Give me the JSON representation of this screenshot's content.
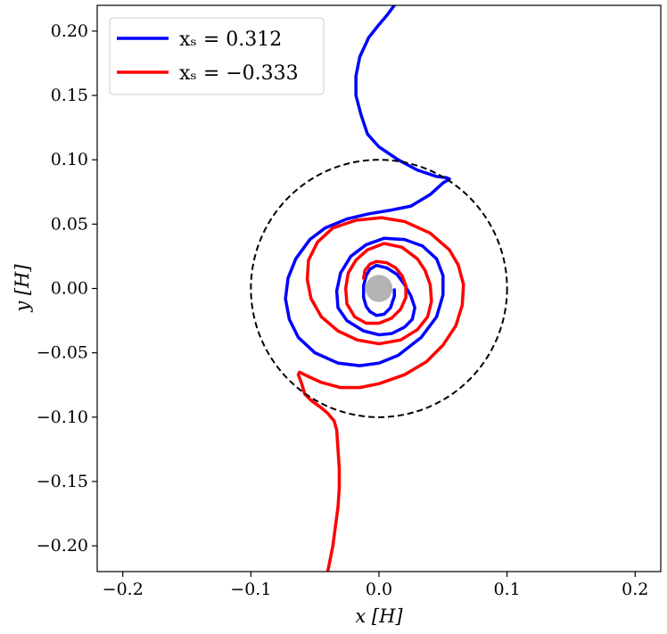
{
  "chart_data": {
    "type": "line",
    "title": "",
    "xlabel": "x [H]",
    "ylabel": "y [H]",
    "xlim": [
      -0.22,
      0.22
    ],
    "ylim": [
      -0.22,
      0.22
    ],
    "x_ticks": [
      -0.2,
      -0.1,
      0.0,
      0.1,
      0.2
    ],
    "x_tick_labels": [
      "−0.2",
      "−0.1",
      "0.0",
      "0.1",
      "0.2"
    ],
    "y_ticks": [
      0.2,
      0.15,
      0.1,
      0.05,
      0.0,
      -0.05,
      -0.1,
      -0.15,
      -0.2
    ],
    "y_tick_labels": [
      "0.20",
      "0.15",
      "0.10",
      "0.05",
      "0.00",
      "−0.05",
      "−0.10",
      "−0.15",
      "−0.20"
    ],
    "grid": false,
    "legend_position": "top-left",
    "reference_circle": {
      "center": [
        0.0,
        0.0
      ],
      "radius": 0.1,
      "style": "dashed",
      "color": "#000000"
    },
    "central_body": {
      "center": [
        0.0,
        0.0
      ],
      "radius": 0.0105,
      "color": "#b3b3b3"
    },
    "series": [
      {
        "name": "x_s = 0.312",
        "legend_label": "xₛ = 0.312",
        "color": "#0000ff",
        "x": [
          0.012,
          0.012,
          0.009,
          0.004,
          -0.002,
          -0.007,
          -0.01,
          -0.012,
          -0.012,
          -0.01,
          -0.007,
          -0.002,
          0.006,
          0.014,
          0.02,
          0.025,
          0.028,
          0.026,
          0.02,
          0.01,
          0.0,
          -0.012,
          -0.025,
          -0.032,
          -0.033,
          -0.03,
          -0.022,
          -0.01,
          0.004,
          0.02,
          0.034,
          0.045,
          0.05,
          0.05,
          0.045,
          0.033,
          0.015,
          0.0,
          -0.015,
          -0.032,
          -0.05,
          -0.063,
          -0.07,
          -0.073,
          -0.071,
          -0.065,
          -0.054,
          -0.042,
          -0.025,
          -0.008,
          0.01,
          0.025,
          0.04,
          0.05,
          0.055,
          0.053,
          0.045,
          0.03,
          0.015,
          0.0,
          -0.009,
          -0.014,
          -0.018,
          -0.018,
          -0.015,
          -0.008,
          0.0,
          0.006,
          0.012
        ],
        "y": [
          -0.001,
          -0.006,
          -0.015,
          -0.02,
          -0.021,
          -0.018,
          -0.014,
          -0.007,
          0.002,
          0.01,
          0.015,
          0.018,
          0.016,
          0.011,
          0.003,
          -0.006,
          -0.015,
          -0.024,
          -0.03,
          -0.035,
          -0.036,
          -0.033,
          -0.025,
          -0.015,
          -0.002,
          0.012,
          0.025,
          0.034,
          0.039,
          0.038,
          0.033,
          0.023,
          0.01,
          -0.005,
          -0.022,
          -0.038,
          -0.052,
          -0.058,
          -0.06,
          -0.058,
          -0.05,
          -0.038,
          -0.024,
          -0.008,
          0.008,
          0.023,
          0.038,
          0.047,
          0.054,
          0.058,
          0.061,
          0.064,
          0.073,
          0.082,
          0.085,
          0.086,
          0.087,
          0.092,
          0.1,
          0.11,
          0.12,
          0.135,
          0.15,
          0.165,
          0.18,
          0.195,
          0.205,
          0.212,
          0.22
        ]
      },
      {
        "name": "x_s = -0.333",
        "legend_label": "xₛ = −0.333",
        "color": "#ff0000",
        "x": [
          -0.012,
          -0.011,
          -0.007,
          -0.002,
          0.006,
          0.013,
          0.018,
          0.021,
          0.021,
          0.017,
          0.01,
          0.0,
          -0.01,
          -0.019,
          -0.025,
          -0.026,
          -0.024,
          -0.018,
          -0.009,
          0.004,
          0.018,
          0.03,
          0.036,
          0.04,
          0.041,
          0.038,
          0.03,
          0.017,
          0.0,
          -0.017,
          -0.032,
          -0.045,
          -0.053,
          -0.056,
          -0.055,
          -0.048,
          -0.036,
          -0.018,
          0.002,
          0.02,
          0.04,
          0.055,
          0.062,
          0.066,
          0.065,
          0.06,
          0.05,
          0.037,
          0.02,
          0.0,
          -0.015,
          -0.03,
          -0.045,
          -0.056,
          -0.062,
          -0.063,
          -0.06,
          -0.058,
          -0.053,
          -0.046,
          -0.04,
          -0.035,
          -0.033,
          -0.032,
          -0.031,
          -0.031,
          -0.032,
          -0.034,
          -0.036,
          -0.04
        ],
        "y": [
          0.008,
          0.014,
          0.019,
          0.021,
          0.02,
          0.016,
          0.01,
          0.002,
          -0.007,
          -0.016,
          -0.023,
          -0.027,
          -0.027,
          -0.022,
          -0.012,
          0.0,
          0.012,
          0.022,
          0.03,
          0.035,
          0.032,
          0.023,
          0.014,
          0.003,
          -0.01,
          -0.022,
          -0.032,
          -0.04,
          -0.043,
          -0.04,
          -0.033,
          -0.022,
          -0.008,
          0.007,
          0.022,
          0.036,
          0.047,
          0.053,
          0.055,
          0.052,
          0.043,
          0.03,
          0.018,
          0.003,
          -0.013,
          -0.029,
          -0.044,
          -0.057,
          -0.067,
          -0.074,
          -0.077,
          -0.077,
          -0.073,
          -0.068,
          -0.065,
          -0.067,
          -0.075,
          -0.082,
          -0.087,
          -0.092,
          -0.097,
          -0.103,
          -0.11,
          -0.125,
          -0.14,
          -0.155,
          -0.17,
          -0.185,
          -0.2,
          -0.22
        ]
      }
    ]
  }
}
